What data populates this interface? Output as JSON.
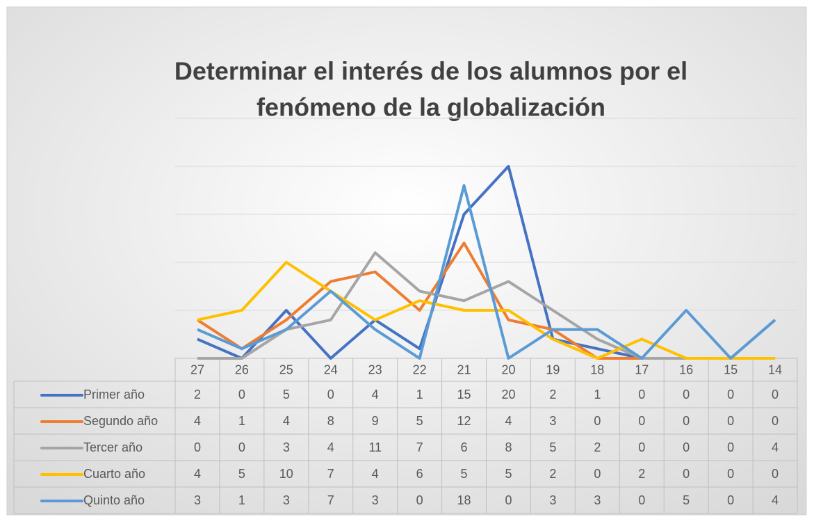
{
  "chart_data": {
    "type": "line",
    "title": [
      "Determinar el interés de los alumnos por el",
      "fenómeno de la globalización"
    ],
    "categories": [
      "27",
      "26",
      "25",
      "24",
      "23",
      "22",
      "21",
      "20",
      "19",
      "18",
      "17",
      "16",
      "15",
      "14"
    ],
    "series": [
      {
        "name": "Primer año",
        "color": "#4472c4",
        "values": [
          2,
          0,
          5,
          0,
          4,
          1,
          15,
          20,
          2,
          1,
          0,
          0,
          0,
          0
        ]
      },
      {
        "name": "Segundo año",
        "color": "#ed7d31",
        "values": [
          4,
          1,
          4,
          8,
          9,
          5,
          12,
          4,
          3,
          0,
          0,
          0,
          0,
          0
        ]
      },
      {
        "name": "Tercer año",
        "color": "#a5a5a5",
        "values": [
          0,
          0,
          3,
          4,
          11,
          7,
          6,
          8,
          5,
          2,
          0,
          0,
          0,
          4
        ]
      },
      {
        "name": "Cuarto año",
        "color": "#ffc000",
        "values": [
          4,
          5,
          10,
          7,
          4,
          6,
          5,
          5,
          2,
          0,
          2,
          0,
          0,
          0
        ]
      },
      {
        "name": "Quinto año",
        "color": "#5b9bd5",
        "values": [
          3,
          1,
          3,
          7,
          3,
          0,
          18,
          0,
          3,
          3,
          0,
          5,
          0,
          4
        ]
      }
    ],
    "ylim": [
      0,
      25
    ],
    "yticks": [
      0,
      5,
      10,
      15,
      20,
      25
    ],
    "grid": true
  }
}
